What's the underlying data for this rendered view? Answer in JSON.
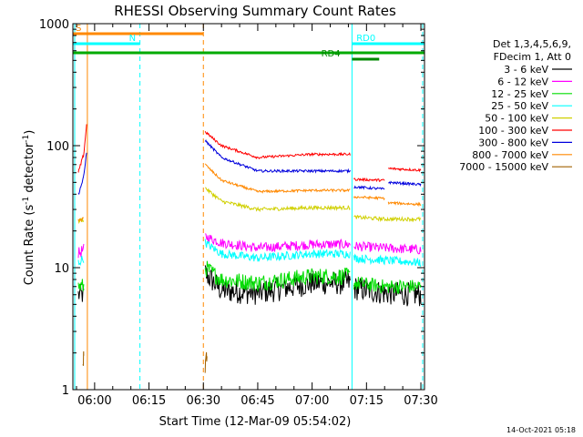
{
  "chart_data": {
    "type": "line",
    "title": "RHESSI Observing Summary Count Rates",
    "xlabel": "Start Time (12-Mar-09 05:54:02)",
    "ylabel_main": "Count Rate (s",
    "ylabel_sup1": "-1",
    "ylabel_mid": " detector",
    "ylabel_sup2": "-1",
    "ylabel_end": ")",
    "y_scale": "log",
    "ylim": [
      1,
      1000
    ],
    "xlim_minutes": [
      -6,
      91
    ],
    "x_ticks": [
      {
        "m": 0,
        "label": "06:00"
      },
      {
        "m": 15,
        "label": "06:15"
      },
      {
        "m": 30,
        "label": "06:30"
      },
      {
        "m": 45,
        "label": "06:45"
      },
      {
        "m": 60,
        "label": "07:00"
      },
      {
        "m": 75,
        "label": "07:15"
      },
      {
        "m": 90,
        "label": "07:30"
      }
    ],
    "y_ticks": [
      {
        "v": 1,
        "label": "1"
      },
      {
        "v": 10,
        "label": "10"
      },
      {
        "v": 100,
        "label": "100"
      },
      {
        "v": 1000,
        "label": "1000"
      }
    ],
    "legend_header": [
      "Det 1,3,4,5,6,9,",
      "FDecim 1, Att 0"
    ],
    "legend_placement": "right",
    "series": [
      {
        "name": "3 - 6 keV",
        "color": "#000000",
        "segments": [
          {
            "t": [
              -4.5,
              -3.0
            ],
            "v": [
              6,
              6
            ],
            "sd": 0.09
          },
          {
            "t": [
              30.5,
              35,
              45,
              60,
              70.5
            ],
            "v": [
              9,
              6.5,
              6.2,
              7.5,
              7.5
            ],
            "sd": 0.1
          },
          {
            "t": [
              71.5,
              80,
              90
            ],
            "v": [
              6.8,
              6.2,
              6.0
            ],
            "sd": 0.1
          }
        ]
      },
      {
        "name": "6 - 12 keV",
        "color": "#ff00ff",
        "segments": [
          {
            "t": [
              -4.5,
              -3.0
            ],
            "v": [
              13,
              14
            ],
            "sd": 0.05
          },
          {
            "t": [
              30.5,
              35,
              45,
              60,
              70.5
            ],
            "v": [
              18,
              16,
              14.5,
              15.5,
              15.5
            ],
            "sd": 0.04
          },
          {
            "t": [
              71.5,
              80,
              90
            ],
            "v": [
              15,
              14.5,
              14
            ],
            "sd": 0.04
          }
        ]
      },
      {
        "name": "12 - 25 keV",
        "color": "#00dd00",
        "segments": [
          {
            "t": [
              -4.5,
              -3.0
            ],
            "v": [
              7,
              7
            ],
            "sd": 0.07
          },
          {
            "t": [
              30.5,
              35,
              45,
              60,
              70.5
            ],
            "v": [
              10,
              8,
              7.5,
              8.5,
              8.5
            ],
            "sd": 0.07
          },
          {
            "t": [
              71.5,
              80,
              90
            ],
            "v": [
              7.5,
              7,
              7
            ],
            "sd": 0.06
          }
        ]
      },
      {
        "name": "25 - 50 keV",
        "color": "#00ffff",
        "segments": [
          {
            "t": [
              -4.5,
              -3.0
            ],
            "v": [
              11,
              12
            ],
            "sd": 0.04
          },
          {
            "t": [
              30.5,
              35,
              45,
              60,
              70.5
            ],
            "v": [
              16,
              13,
              12,
              13,
              13
            ],
            "sd": 0.035
          },
          {
            "t": [
              71.5,
              80,
              90
            ],
            "v": [
              12,
              11.5,
              11
            ],
            "sd": 0.035
          }
        ]
      },
      {
        "name": "50 - 100 keV",
        "color": "#d0d000",
        "segments": [
          {
            "t": [
              -4.5,
              -3.0
            ],
            "v": [
              24,
              25
            ],
            "sd": 0.02
          },
          {
            "t": [
              30.5,
              35,
              45,
              60,
              70.5
            ],
            "v": [
              45,
              35,
              30,
              31,
              31
            ],
            "sd": 0.015
          },
          {
            "t": [
              71.5,
              80,
              90
            ],
            "v": [
              26,
              25,
              25
            ],
            "sd": 0.015
          }
        ]
      },
      {
        "name": "100 - 300 keV",
        "color": "#ff0000",
        "segments": [
          {
            "t": [
              -4.5,
              -3.0,
              -2.2
            ],
            "v": [
              60,
              85,
              150
            ],
            "sd": 0.015
          },
          {
            "t": [
              30.5,
              35,
              45,
              60,
              70.5
            ],
            "v": [
              130,
              100,
              80,
              85,
              85
            ],
            "sd": 0.01
          },
          {
            "t": [
              71.5,
              80
            ],
            "v": [
              53,
              52
            ],
            "sd": 0.01
          },
          {
            "t": [
              81,
              90
            ],
            "v": [
              65,
              63
            ],
            "sd": 0.01
          }
        ]
      },
      {
        "name": "300 - 800 keV",
        "color": "#0000dd",
        "segments": [
          {
            "t": [
              -4.5,
              -3.0,
              -2.2
            ],
            "v": [
              40,
              55,
              90
            ],
            "sd": 0.015
          },
          {
            "t": [
              30.5,
              35,
              45,
              60,
              70.5
            ],
            "v": [
              110,
              80,
              62,
              62,
              62
            ],
            "sd": 0.01
          },
          {
            "t": [
              71.5,
              80
            ],
            "v": [
              46,
              44
            ],
            "sd": 0.01
          },
          {
            "t": [
              81,
              90
            ],
            "v": [
              50,
              48
            ],
            "sd": 0.01
          }
        ]
      },
      {
        "name": "800 - 7000 keV",
        "color": "#ff8800",
        "segments": [
          {
            "t": [
              -4.5,
              -3.0
            ],
            "v": [
              24,
              26
            ],
            "sd": 0.015
          },
          {
            "t": [
              30.5,
              35,
              45,
              60,
              70.5
            ],
            "v": [
              70,
              52,
              42,
              43,
              43
            ],
            "sd": 0.01
          },
          {
            "t": [
              71.5,
              80
            ],
            "v": [
              38,
              37
            ],
            "sd": 0.01
          },
          {
            "t": [
              81,
              90
            ],
            "v": [
              34,
              33
            ],
            "sd": 0.01
          }
        ]
      },
      {
        "name": "7000 - 15000 keV",
        "color": "#a06000",
        "segments": [
          {
            "t": [
              -3.2,
              -3.0
            ],
            "v": [
              1.5,
              2
            ],
            "sd": 0.05
          },
          {
            "t": [
              30.5,
              31
            ],
            "v": [
              1.5,
              2
            ],
            "sd": 0.05
          }
        ]
      }
    ],
    "flags": [
      {
        "label": "S",
        "color": "#ff8800",
        "t0": -6,
        "t1": 30,
        "y": 37,
        "labelAt": -5.2
      },
      {
        "label": "N",
        "color": "#00ffff",
        "t0": -6,
        "t1": 12.5,
        "y": 48,
        "labelAt": 9.5
      },
      {
        "label": "RD0",
        "color": "#00ffff",
        "t0": 71,
        "t1": 91,
        "y": 48,
        "labelAt": 72.2
      },
      {
        "label": "",
        "color": "#00aa00",
        "t0": -6,
        "t1": 91,
        "y": 58,
        "labelAt": -6
      },
      {
        "label": "RD4",
        "color": "#008800",
        "t0": 71,
        "t1": 78.5,
        "y": 65,
        "labelAt": 62.5
      }
    ],
    "vlines": [
      {
        "t": -5.5,
        "color": "#00ffff",
        "dash": false
      },
      {
        "t": -2.0,
        "color": "#ff8800",
        "dash": false
      },
      {
        "t": 12.5,
        "color": "#00ffff",
        "dash": true
      },
      {
        "t": 30.0,
        "color": "#ff8800",
        "dash": true
      },
      {
        "t": 71.0,
        "color": "#00ffff",
        "dash": false
      },
      {
        "t": 90.5,
        "color": "#00ffff",
        "dash": true
      }
    ],
    "timestamp": "14-Oct-2021 05:18"
  }
}
